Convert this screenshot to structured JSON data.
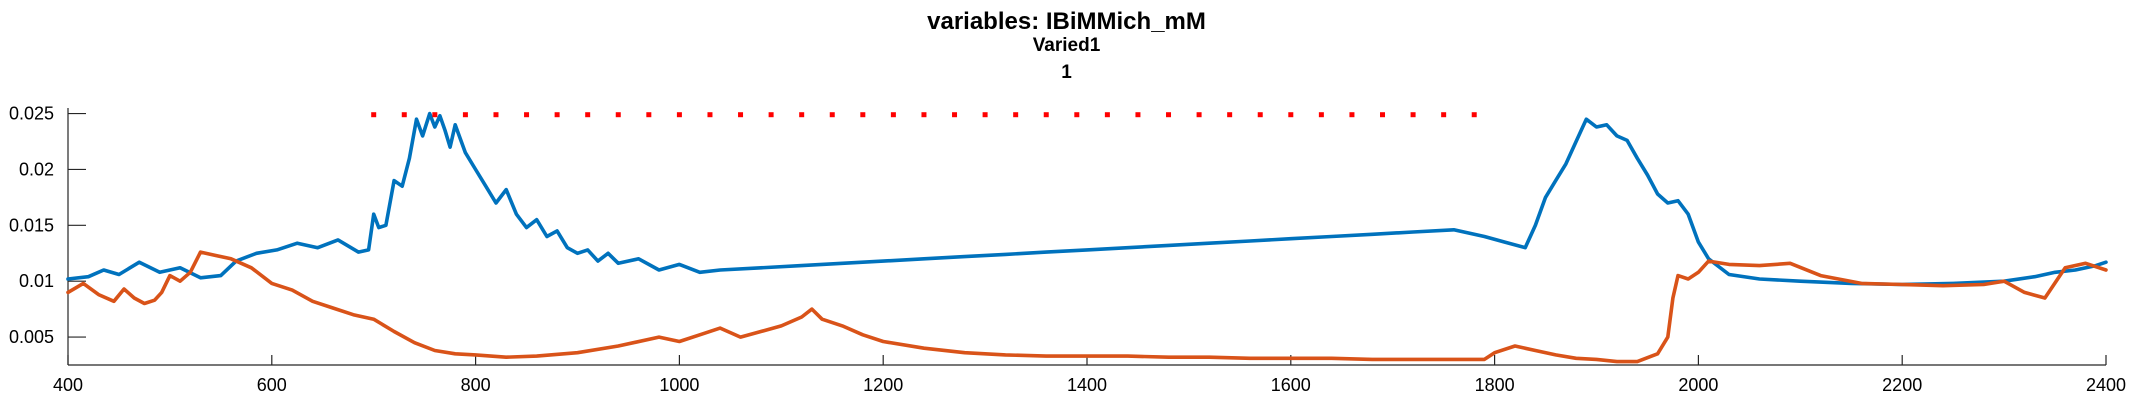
{
  "chart_data": {
    "type": "line",
    "title": "variables: IBiMMich_mM",
    "subtitle": "Varied1",
    "subsubtitle": "1",
    "xlabel": "",
    "ylabel": "",
    "xlim": [
      400,
      2400
    ],
    "ylim": [
      0.0025,
      0.0255
    ],
    "x_ticks": [
      400,
      600,
      800,
      1000,
      1200,
      1400,
      1600,
      1800,
      2000,
      2200,
      2400
    ],
    "x_tick_labels": [
      "400",
      "600",
      "800",
      "1000",
      "1200",
      "1400",
      "1600",
      "1800",
      "2000",
      "2200",
      "2400"
    ],
    "y_ticks": [
      0.005,
      0.01,
      0.015,
      0.02,
      0.025
    ],
    "y_tick_labels": [
      "0.005",
      "0.01",
      "0.015",
      "0.02",
      "0.025"
    ],
    "grid": false,
    "colors": {
      "blue": "#0072bd",
      "orange": "#d95319",
      "red_dots": "#ff0000"
    },
    "series": [
      {
        "color": "#0072bd",
        "x": [
          400,
          420,
          435,
          450,
          470,
          490,
          510,
          530,
          550,
          565,
          585,
          605,
          625,
          645,
          665,
          685,
          695,
          700,
          705,
          712,
          720,
          728,
          735,
          742,
          748,
          755,
          760,
          765,
          770,
          775,
          780,
          790,
          800,
          810,
          820,
          830,
          840,
          850,
          860,
          870,
          880,
          890,
          900,
          910,
          920,
          930,
          940,
          960,
          980,
          1000,
          1020,
          1040,
          1080,
          1120,
          1160,
          1200,
          1240,
          1280,
          1320,
          1360,
          1400,
          1440,
          1480,
          1520,
          1560,
          1600,
          1640,
          1680,
          1720,
          1760,
          1790,
          1810,
          1830,
          1840,
          1850,
          1860,
          1870,
          1880,
          1890,
          1900,
          1910,
          1920,
          1930,
          1940,
          1950,
          1960,
          1970,
          1980,
          1990,
          2000,
          2010,
          2030,
          2060,
          2100,
          2150,
          2200,
          2250,
          2300,
          2330,
          2350,
          2370,
          2390,
          2400
        ],
        "y": [
          0.0102,
          0.0104,
          0.011,
          0.0106,
          0.0117,
          0.0108,
          0.0112,
          0.0103,
          0.0105,
          0.0118,
          0.0125,
          0.0128,
          0.0134,
          0.013,
          0.0137,
          0.0126,
          0.0128,
          0.016,
          0.0148,
          0.015,
          0.019,
          0.0185,
          0.021,
          0.0245,
          0.023,
          0.025,
          0.0238,
          0.0248,
          0.0235,
          0.022,
          0.024,
          0.0215,
          0.02,
          0.0185,
          0.017,
          0.0182,
          0.016,
          0.0148,
          0.0155,
          0.014,
          0.0145,
          0.013,
          0.0125,
          0.0128,
          0.0118,
          0.0125,
          0.0116,
          0.012,
          0.011,
          0.0115,
          0.0108,
          0.011,
          0.0112,
          0.0114,
          0.0116,
          0.0118,
          0.012,
          0.0122,
          0.0124,
          0.0126,
          0.0128,
          0.013,
          0.0132,
          0.0134,
          0.0136,
          0.0138,
          0.014,
          0.0142,
          0.0144,
          0.0146,
          0.014,
          0.0135,
          0.013,
          0.015,
          0.0175,
          0.019,
          0.0205,
          0.0225,
          0.0245,
          0.0238,
          0.024,
          0.023,
          0.0226,
          0.021,
          0.0195,
          0.0178,
          0.017,
          0.0172,
          0.016,
          0.0135,
          0.012,
          0.0106,
          0.0102,
          0.01,
          0.0098,
          0.0097,
          0.0098,
          0.01,
          0.0104,
          0.0108,
          0.011,
          0.0114,
          0.0117
        ]
      },
      {
        "color": "#d95319",
        "x": [
          400,
          415,
          430,
          445,
          455,
          465,
          475,
          485,
          492,
          500,
          510,
          520,
          530,
          545,
          560,
          580,
          600,
          620,
          640,
          660,
          680,
          700,
          720,
          740,
          760,
          780,
          800,
          830,
          860,
          900,
          940,
          980,
          1000,
          1020,
          1040,
          1060,
          1080,
          1100,
          1120,
          1130,
          1140,
          1160,
          1180,
          1200,
          1240,
          1280,
          1320,
          1360,
          1400,
          1440,
          1480,
          1520,
          1560,
          1600,
          1640,
          1680,
          1720,
          1760,
          1790,
          1800,
          1820,
          1840,
          1860,
          1880,
          1900,
          1920,
          1940,
          1960,
          1970,
          1975,
          1980,
          1990,
          2000,
          2010,
          2030,
          2060,
          2090,
          2120,
          2160,
          2200,
          2240,
          2280,
          2300,
          2320,
          2340,
          2360,
          2380,
          2400
        ],
        "y": [
          0.009,
          0.0098,
          0.0088,
          0.0082,
          0.0093,
          0.0085,
          0.008,
          0.0083,
          0.009,
          0.0105,
          0.01,
          0.0108,
          0.0126,
          0.0123,
          0.012,
          0.0112,
          0.0098,
          0.0092,
          0.0082,
          0.0076,
          0.007,
          0.0066,
          0.0055,
          0.0045,
          0.0038,
          0.0035,
          0.0034,
          0.0032,
          0.0033,
          0.0036,
          0.0042,
          0.005,
          0.0046,
          0.0052,
          0.0058,
          0.005,
          0.0055,
          0.006,
          0.0068,
          0.0075,
          0.0066,
          0.006,
          0.0052,
          0.0046,
          0.004,
          0.0036,
          0.0034,
          0.0033,
          0.0033,
          0.0033,
          0.0032,
          0.0032,
          0.0031,
          0.0031,
          0.0031,
          0.003,
          0.003,
          0.003,
          0.003,
          0.0036,
          0.0042,
          0.0038,
          0.0034,
          0.0031,
          0.003,
          0.0028,
          0.0028,
          0.0035,
          0.005,
          0.0085,
          0.0105,
          0.0102,
          0.0108,
          0.0118,
          0.0115,
          0.0114,
          0.0116,
          0.0105,
          0.0098,
          0.0097,
          0.0096,
          0.0097,
          0.01,
          0.009,
          0.0085,
          0.0112,
          0.0116,
          0.011
        ]
      },
      {
        "color": "#ff0000",
        "style": "dotted",
        "x": [
          700,
          1780
        ],
        "y": [
          0.0249,
          0.0249
        ]
      }
    ]
  }
}
